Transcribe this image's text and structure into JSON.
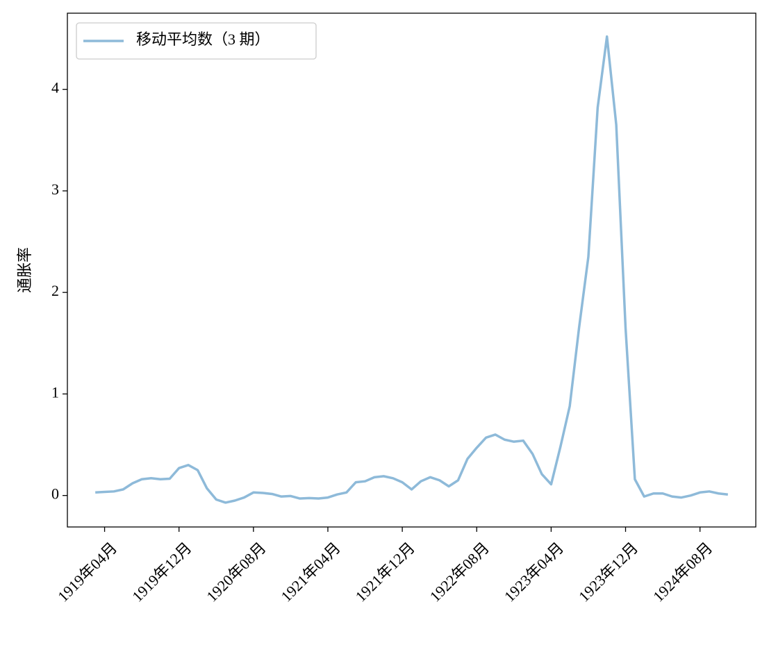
{
  "chart_data": {
    "type": "line",
    "ylabel": "通胀率",
    "x": [
      "1919-03",
      "1919-04",
      "1919-05",
      "1919-06",
      "1919-07",
      "1919-08",
      "1919-09",
      "1919-10",
      "1919-11",
      "1919-12",
      "1920-01",
      "1920-02",
      "1920-03",
      "1920-04",
      "1920-05",
      "1920-06",
      "1920-07",
      "1920-08",
      "1920-09",
      "1920-10",
      "1920-11",
      "1920-12",
      "1921-01",
      "1921-02",
      "1921-03",
      "1921-04",
      "1921-05",
      "1921-06",
      "1921-07",
      "1921-08",
      "1921-09",
      "1921-10",
      "1921-11",
      "1921-12",
      "1922-01",
      "1922-02",
      "1922-03",
      "1922-04",
      "1922-05",
      "1922-06",
      "1922-07",
      "1922-08",
      "1922-09",
      "1922-10",
      "1922-11",
      "1922-12",
      "1923-01",
      "1923-02",
      "1923-03",
      "1923-04",
      "1923-05",
      "1923-06",
      "1923-07",
      "1923-08",
      "1923-09",
      "1923-10",
      "1923-11",
      "1923-12",
      "1924-01",
      "1924-02",
      "1924-03",
      "1924-04",
      "1924-05",
      "1924-06",
      "1924-07",
      "1924-08",
      "1924-09",
      "1924-10",
      "1924-11"
    ],
    "series": [
      {
        "name": "移动平均数（3 期）",
        "color": "#8ebad9",
        "values": [
          0.03,
          0.035,
          0.04,
          0.06,
          0.12,
          0.16,
          0.17,
          0.16,
          0.165,
          0.27,
          0.3,
          0.25,
          0.07,
          -0.04,
          -0.07,
          -0.05,
          -0.02,
          0.03,
          0.025,
          0.015,
          -0.01,
          -0.005,
          -0.03,
          -0.025,
          -0.03,
          -0.02,
          0.01,
          0.03,
          0.13,
          0.14,
          0.18,
          0.19,
          0.17,
          0.13,
          0.06,
          0.14,
          0.18,
          0.15,
          0.09,
          0.15,
          0.36,
          0.47,
          0.57,
          0.6,
          0.55,
          0.53,
          0.54,
          0.41,
          0.21,
          0.11,
          0.48,
          0.88,
          1.65,
          2.35,
          3.82,
          4.52,
          3.65,
          1.65,
          0.16,
          -0.01,
          0.02,
          0.02,
          -0.01,
          -0.02,
          0.0,
          0.03,
          0.04,
          0.02,
          0.01
        ]
      }
    ],
    "xlim": [
      "1918-12",
      "1925-02"
    ],
    "ylim": [
      -0.31,
      4.75
    ],
    "yticks": [
      0,
      1,
      2,
      3,
      4
    ],
    "xticks": [
      {
        "value": "1919-04",
        "label": "1919年04月"
      },
      {
        "value": "1919-12",
        "label": "1919年12月"
      },
      {
        "value": "1920-08",
        "label": "1920年08月"
      },
      {
        "value": "1921-04",
        "label": "1921年04月"
      },
      {
        "value": "1921-12",
        "label": "1921年12月"
      },
      {
        "value": "1922-08",
        "label": "1922年08月"
      },
      {
        "value": "1923-04",
        "label": "1923年04月"
      },
      {
        "value": "1923-12",
        "label": "1923年12月"
      },
      {
        "value": "1924-08",
        "label": "1924年08月"
      }
    ],
    "legend": "upper left"
  }
}
